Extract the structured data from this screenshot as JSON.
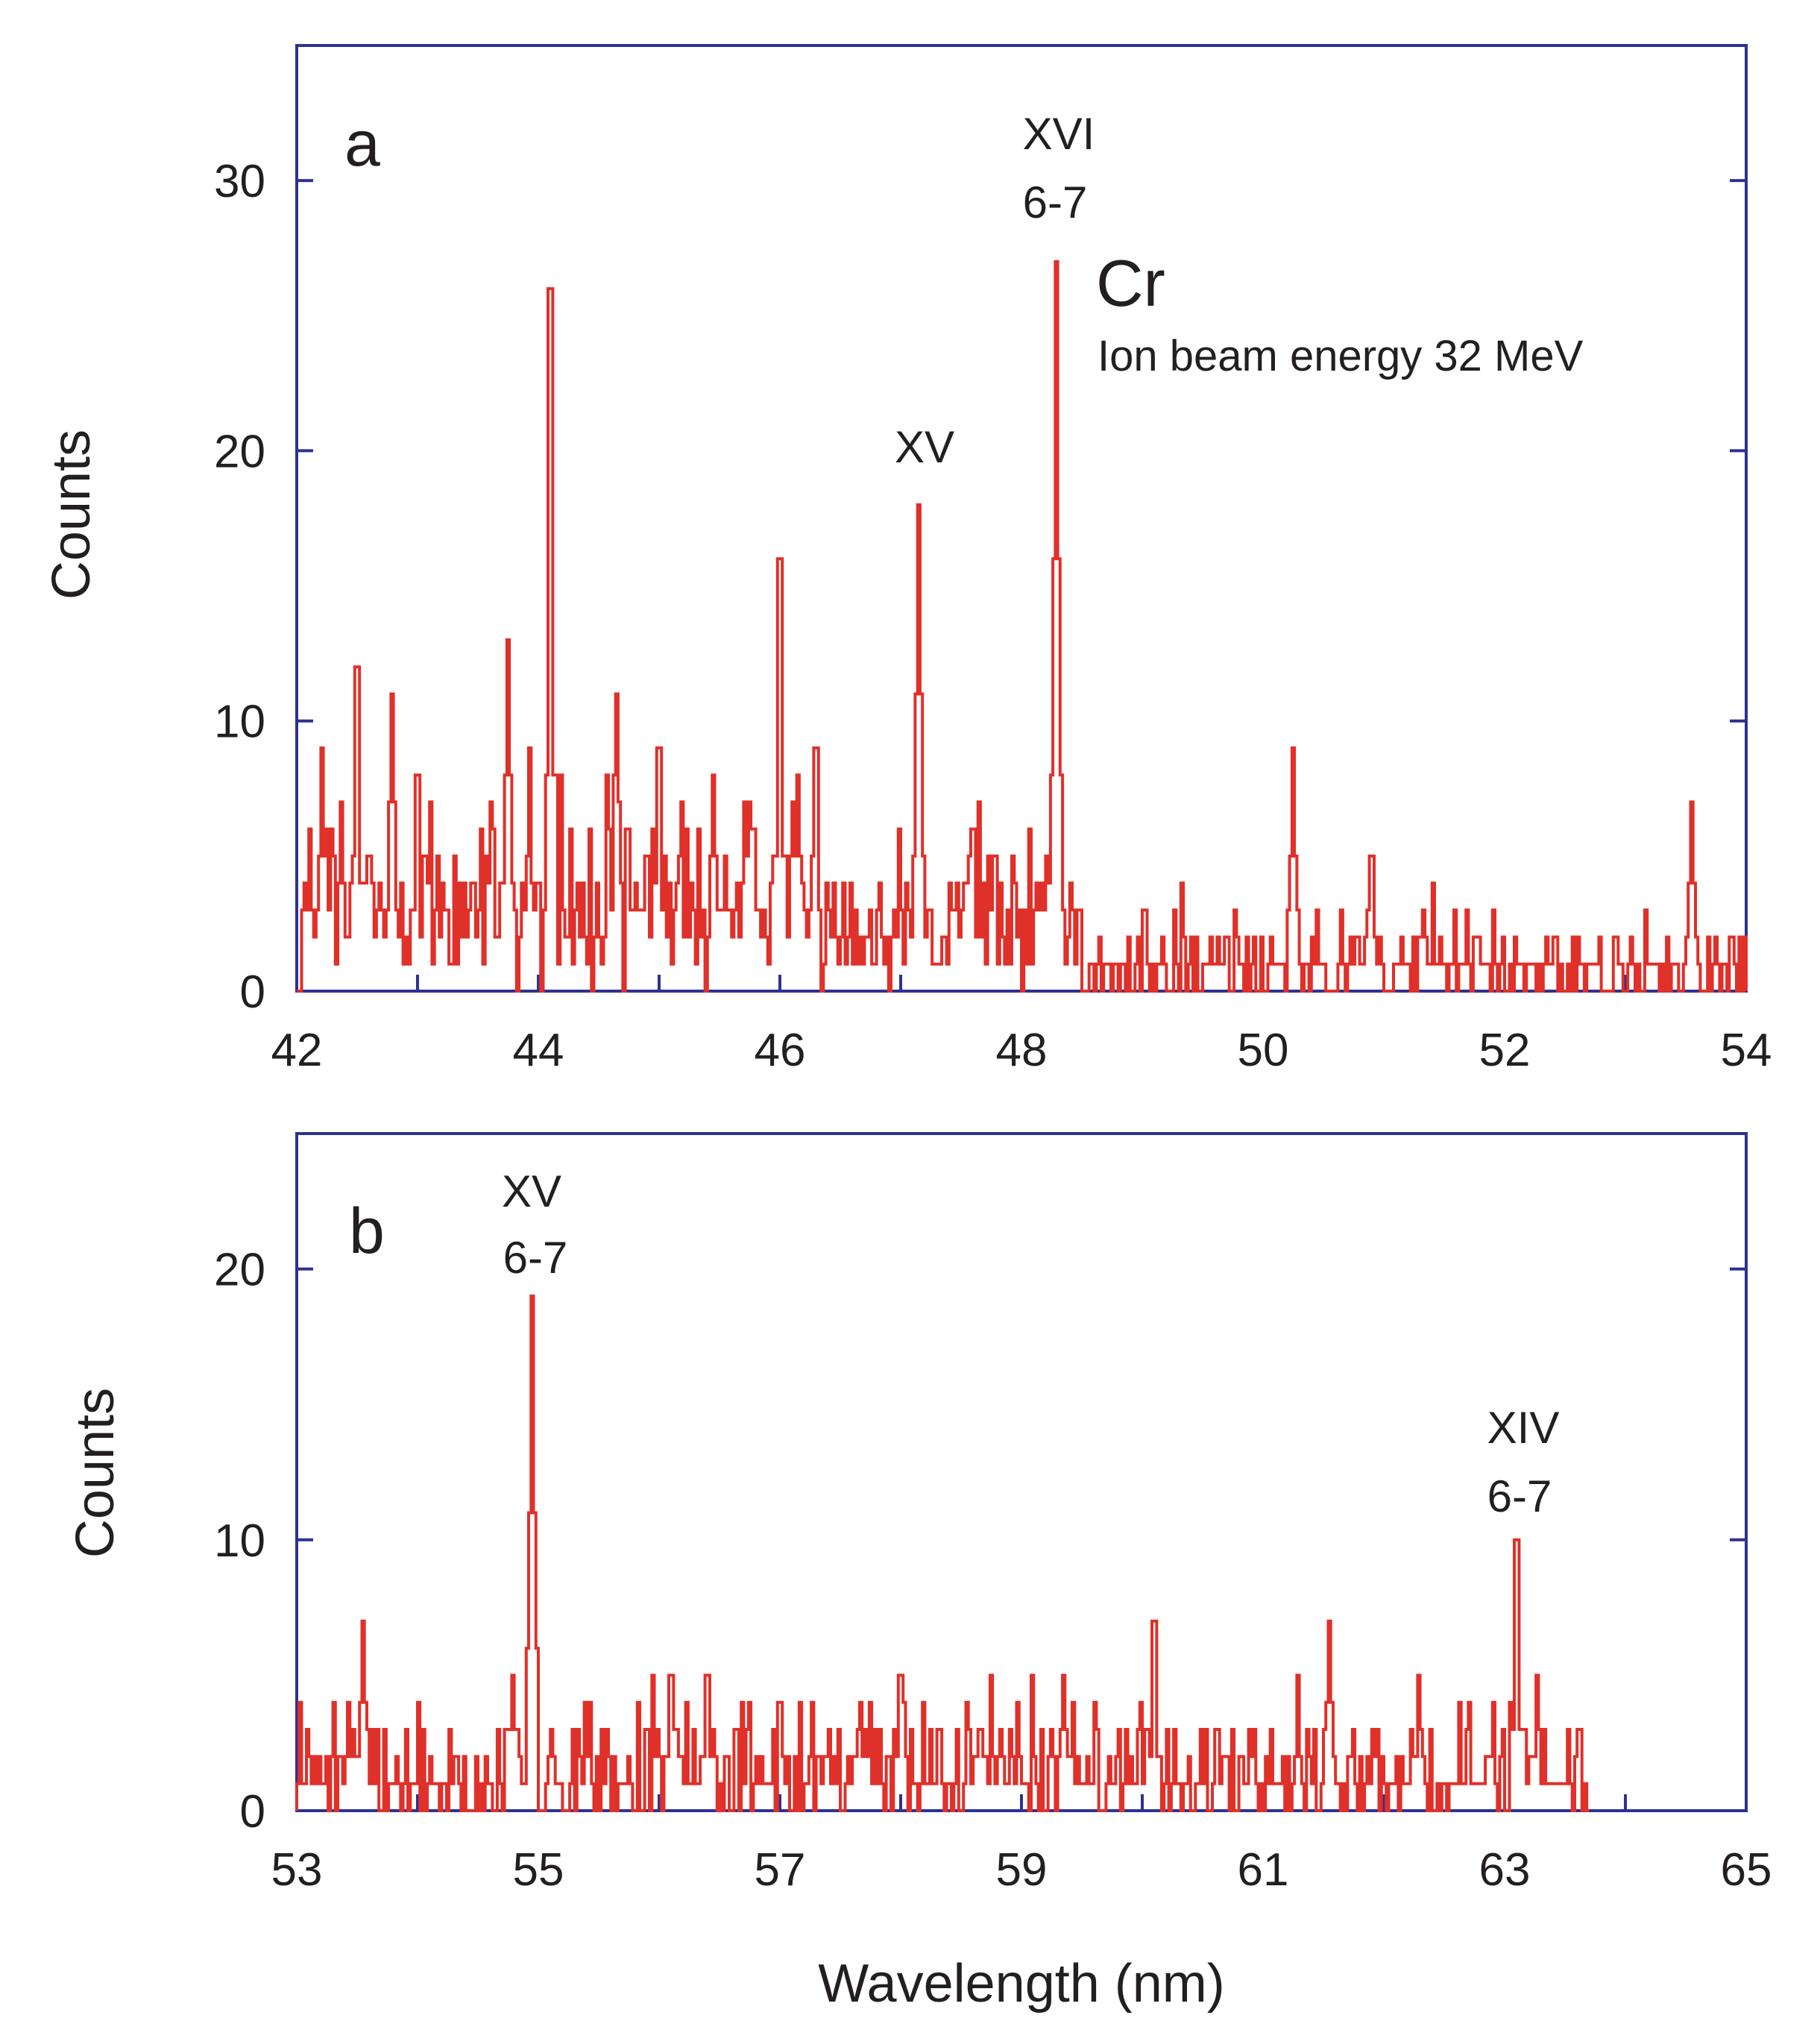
{
  "chart_data": [
    {
      "type": "line",
      "panel_label": "a",
      "xlabel": "",
      "ylabel": "Counts",
      "xlim": [
        42,
        54
      ],
      "ylim": [
        0,
        35
      ],
      "x_ticks_major": [
        42,
        44,
        46,
        48,
        50,
        52,
        54
      ],
      "x_ticks_minor": [
        43,
        45,
        47,
        49,
        51,
        53
      ],
      "y_ticks": [
        0,
        10,
        20,
        30
      ],
      "element": "Cr",
      "subtitle": "Ion beam energy 32 MeV",
      "annotations": [
        {
          "text": [
            "XVI",
            "6-7"
          ],
          "x": 48.3
        },
        {
          "text": [
            "XV"
          ],
          "x": 47.15
        }
      ],
      "bin_width": 0.02,
      "peaks": [
        {
          "x": 42.2,
          "y": 9
        },
        {
          "x": 42.5,
          "y": 12
        },
        {
          "x": 42.8,
          "y": 11
        },
        {
          "x": 43.0,
          "y": 8
        },
        {
          "x": 43.75,
          "y": 13
        },
        {
          "x": 43.92,
          "y": 9
        },
        {
          "x": 44.1,
          "y": 26
        },
        {
          "x": 44.65,
          "y": 11
        },
        {
          "x": 45.0,
          "y": 9
        },
        {
          "x": 45.45,
          "y": 8
        },
        {
          "x": 46.0,
          "y": 16
        },
        {
          "x": 46.15,
          "y": 8
        },
        {
          "x": 46.3,
          "y": 9
        },
        {
          "x": 47.15,
          "y": 18
        },
        {
          "x": 47.6,
          "y": 6
        },
        {
          "x": 48.3,
          "y": 27
        },
        {
          "x": 50.25,
          "y": 9
        },
        {
          "x": 50.9,
          "y": 5
        },
        {
          "x": 53.55,
          "y": 7
        }
      ],
      "baseline_before": 3,
      "baseline_after": 1,
      "baseline_switch": 48.5,
      "data_range": [
        42,
        54
      ]
    },
    {
      "type": "line",
      "panel_label": "b",
      "xlabel": "Wavelength (nm)",
      "ylabel": "Counts",
      "xlim": [
        53,
        65
      ],
      "ylim": [
        0,
        25
      ],
      "x_ticks_major": [
        53,
        55,
        57,
        59,
        61,
        63,
        65
      ],
      "x_ticks_minor": [
        54,
        56,
        58,
        60,
        62,
        64
      ],
      "y_ticks": [
        0,
        10,
        20
      ],
      "annotations": [
        {
          "text": [
            "XV",
            "6-7"
          ],
          "x": 54.95
        },
        {
          "text": [
            "XIV",
            "6-7"
          ],
          "x": 63.1
        }
      ],
      "bin_width": 0.02,
      "peaks": [
        {
          "x": 53.55,
          "y": 7
        },
        {
          "x": 54.8,
          "y": 5
        },
        {
          "x": 54.95,
          "y": 19
        },
        {
          "x": 56.1,
          "y": 5
        },
        {
          "x": 56.4,
          "y": 5
        },
        {
          "x": 58.0,
          "y": 5
        },
        {
          "x": 59.35,
          "y": 5
        },
        {
          "x": 60.1,
          "y": 7
        },
        {
          "x": 61.55,
          "y": 7
        },
        {
          "x": 62.3,
          "y": 5
        },
        {
          "x": 63.1,
          "y": 10
        }
      ],
      "baseline_before": 1.5,
      "baseline_after": 1.5,
      "baseline_switch": 60,
      "data_range": [
        53,
        63.7
      ]
    }
  ]
}
